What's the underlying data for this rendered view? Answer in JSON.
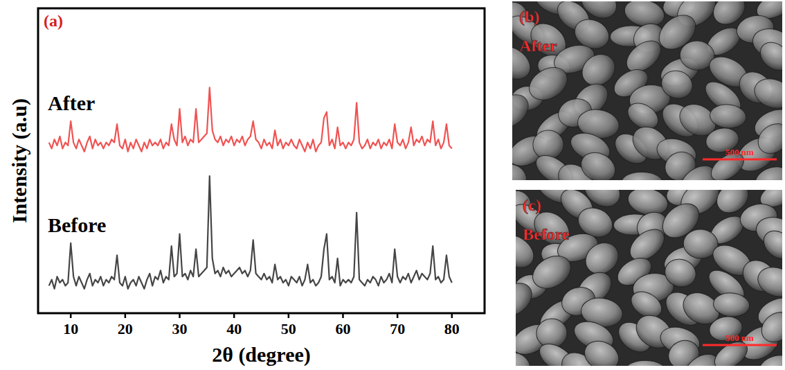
{
  "chart_data": {
    "type": "line",
    "title": "(a)",
    "x_label": "2θ (degree)",
    "y_label": "Intensity (a.u)",
    "x": [
      6,
      6.5,
      7,
      7.5,
      8,
      8.5,
      9,
      9.5,
      10,
      10.5,
      11,
      11.5,
      12,
      12.5,
      13,
      13.5,
      14,
      14.5,
      15,
      15.5,
      16,
      16.5,
      17,
      17.5,
      18,
      18.5,
      19,
      19.5,
      20,
      20.5,
      21,
      21.5,
      22,
      22.5,
      23,
      23.5,
      24,
      24.5,
      25,
      25.5,
      26,
      26.5,
      27,
      27.5,
      28,
      28.5,
      29,
      29.5,
      30,
      30.5,
      31,
      31.5,
      32,
      32.5,
      33,
      33.5,
      34,
      34.5,
      35,
      35.5,
      36,
      36.5,
      37,
      37.5,
      38,
      38.5,
      39,
      39.5,
      40,
      40.5,
      41,
      41.5,
      42,
      42.5,
      43,
      43.5,
      44,
      44.5,
      45,
      45.5,
      46,
      46.5,
      47,
      47.5,
      48,
      48.5,
      49,
      49.5,
      50,
      50.5,
      51,
      51.5,
      52,
      52.5,
      53,
      53.5,
      54,
      54.5,
      55,
      55.5,
      56,
      56.5,
      57,
      57.5,
      58,
      58.5,
      59,
      59.5,
      60,
      60.5,
      61,
      61.5,
      62,
      62.5,
      63,
      63.5,
      64,
      64.5,
      65,
      65.5,
      66,
      66.5,
      67,
      67.5,
      68,
      68.5,
      69,
      69.5,
      70,
      70.5,
      71,
      71.5,
      72,
      72.5,
      73,
      73.5,
      74,
      74.5,
      75,
      75.5,
      76,
      76.5,
      77,
      77.5,
      78,
      78.5,
      79,
      79.5,
      80
    ],
    "series": [
      {
        "name": "Before",
        "color": "#454545",
        "values": [
          9,
          11,
          8,
          12,
          10,
          11,
          9,
          10,
          23,
          12,
          9,
          12,
          10,
          8,
          11,
          13,
          9,
          11,
          10,
          12,
          9,
          11,
          10,
          12,
          11,
          19,
          10,
          9,
          12,
          8,
          10,
          11,
          9,
          12,
          10,
          8,
          11,
          13,
          9,
          12,
          11,
          14,
          10,
          12,
          11,
          22,
          12,
          13,
          26,
          12,
          13,
          11,
          14,
          12,
          21,
          12,
          13,
          14,
          15,
          45,
          18,
          13,
          14,
          12,
          15,
          13,
          14,
          12,
          13,
          14,
          15,
          13,
          14,
          12,
          14,
          24,
          13,
          12,
          11,
          13,
          11,
          12,
          10,
          16,
          11,
          12,
          10,
          11,
          9,
          12,
          11,
          10,
          12,
          9,
          11,
          16,
          10,
          11,
          9,
          10,
          12,
          21,
          26,
          11,
          12,
          10,
          18,
          9,
          11,
          10,
          11,
          10,
          12,
          33,
          11,
          10,
          9,
          11,
          10,
          12,
          11,
          9,
          12,
          10,
          11,
          13,
          10,
          21,
          12,
          10,
          12,
          11,
          13,
          10,
          12,
          14,
          11,
          13,
          12,
          11,
          13,
          22,
          11,
          12,
          10,
          11,
          19,
          12,
          10
        ]
      },
      {
        "name": "After",
        "color": "#f05252",
        "values": [
          56,
          54,
          57,
          55,
          58,
          54,
          56,
          55,
          63,
          56,
          54,
          57,
          55,
          53,
          56,
          58,
          54,
          57,
          55,
          56,
          54,
          56,
          55,
          57,
          56,
          62,
          55,
          54,
          57,
          53,
          56,
          54,
          57,
          55,
          53,
          56,
          54,
          57,
          55,
          56,
          55,
          57,
          54,
          56,
          55,
          62,
          57,
          55,
          67,
          56,
          58,
          55,
          57,
          56,
          67,
          56,
          57,
          58,
          59,
          74,
          60,
          57,
          56,
          58,
          55,
          57,
          56,
          58,
          55,
          57,
          56,
          58,
          55,
          57,
          58,
          63,
          57,
          56,
          54,
          57,
          55,
          56,
          54,
          60,
          55,
          57,
          54,
          56,
          55,
          57,
          55,
          54,
          57,
          55,
          53,
          56,
          54,
          57,
          53,
          55,
          56,
          64,
          66,
          55,
          57,
          54,
          61,
          55,
          56,
          54,
          56,
          55,
          57,
          69,
          56,
          54,
          55,
          57,
          54,
          56,
          55,
          57,
          54,
          56,
          55,
          57,
          54,
          62,
          56,
          55,
          57,
          54,
          56,
          61,
          55,
          57,
          56,
          58,
          55,
          57,
          56,
          63,
          55,
          57,
          54,
          56,
          62,
          55,
          54
        ]
      }
    ],
    "xlim": [
      4,
      86
    ],
    "xticks": [
      10,
      20,
      30,
      40,
      50,
      60,
      70,
      80
    ],
    "ylim": [
      0,
      100
    ],
    "yticks": [],
    "tick_labels": "x",
    "grid": false
  },
  "images": [
    {
      "label": "(b)",
      "caption": "After",
      "scale_bar": "500 nm"
    },
    {
      "label": "(c)",
      "caption": "Before",
      "scale_bar": "500 nm"
    }
  ]
}
